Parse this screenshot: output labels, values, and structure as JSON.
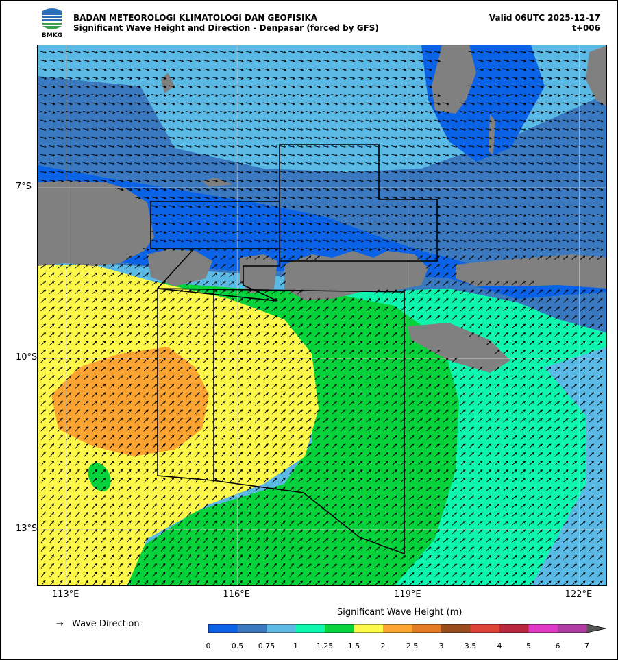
{
  "header": {
    "agency": "BADAN METEOROLOGI KLIMATOLOGI DAN GEOFISIKA",
    "subtitle": "Significant Wave Height and Direction - Denpasar (forced by GFS)",
    "valid": "Valid 06UTC 2025-12-17",
    "step": "t+006",
    "logo_text": "BMKG"
  },
  "axes": {
    "lat_labels": [
      {
        "text": "7°S",
        "lat": -7
      },
      {
        "text": "10°S",
        "lat": -10
      },
      {
        "text": "13°S",
        "lat": -13
      }
    ],
    "lon_labels": [
      {
        "text": "113°E",
        "lon": 113
      },
      {
        "text": "116°E",
        "lon": 116
      },
      {
        "text": "119°E",
        "lon": 119
      },
      {
        "text": "122°E",
        "lon": 122
      }
    ],
    "lon_range": [
      112.5,
      122.5
    ],
    "lat_range": [
      -14,
      -4.5
    ]
  },
  "legend": {
    "title": "Significant Wave Height (m)",
    "wave_direction_label": "Wave Direction",
    "bins": [
      {
        "label": "0",
        "color": "#0a63e6"
      },
      {
        "label": "0.5",
        "color": "#3a78c0"
      },
      {
        "label": "0.75",
        "color": "#5ab9e5"
      },
      {
        "label": "1",
        "color": "#0ef5b0"
      },
      {
        "label": "1.25",
        "color": "#06d23c"
      },
      {
        "label": "1.5",
        "color": "#fef84a"
      },
      {
        "label": "2",
        "color": "#fba432"
      },
      {
        "label": "2.5",
        "color": "#e27a26"
      },
      {
        "label": "3",
        "color": "#9a4c1a"
      },
      {
        "label": "3.5",
        "color": "#de4436"
      },
      {
        "label": "4",
        "color": "#b8283f"
      },
      {
        "label": "5",
        "color": "#e03ac8"
      },
      {
        "label": "6",
        "color": "#b13aa5"
      }
    ],
    "max_label": "7",
    "overflow_color": "#555555"
  },
  "colors": {
    "land": "#808080",
    "grid": "#cccccc"
  }
}
